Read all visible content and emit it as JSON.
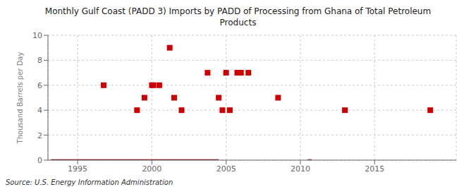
{
  "chart_data": {
    "type": "scatter",
    "title": "Monthly Gulf Coast (PADD 3) Imports by PADD of Processing from Ghana of Total Petroleum\nProducts",
    "ylabel": "Thousand Barrels per Day",
    "annotation": "Source: U.S. Energy Information Administration",
    "xlim": [
      1993.0,
      2020.5
    ],
    "ylim": [
      0,
      10
    ],
    "xticks": [
      1995,
      2000,
      2005,
      2010,
      2015
    ],
    "yticks": [
      0,
      2,
      4,
      6,
      8,
      10
    ],
    "grid": true,
    "series": [
      {
        "type": "scatter",
        "color": "#cc0000",
        "marker": "square",
        "x": [
          1996.75,
          1999.0,
          1999.5,
          2000.0,
          2000.1,
          2000.5,
          2001.2,
          2001.5,
          2002.0,
          2003.75,
          2004.5,
          2004.75,
          2005.0,
          2005.25,
          2005.75,
          2006.0,
          2006.5,
          2008.5,
          2013.0,
          2018.75
        ],
        "values": [
          6,
          4,
          5,
          6,
          6,
          6,
          9,
          5,
          4,
          7,
          5,
          4,
          7,
          4,
          7,
          7,
          7,
          5,
          4,
          4
        ]
      },
      {
        "type": "line",
        "color": "#8b0000",
        "line_style": "solid",
        "x": [
          1993.2,
          2004.5
        ],
        "values": [
          0,
          0
        ]
      },
      {
        "type": "line",
        "color": "#8b0000",
        "line_style": "solid",
        "x": [
          2010.5,
          2010.75
        ],
        "values": [
          0,
          0
        ]
      }
    ]
  }
}
